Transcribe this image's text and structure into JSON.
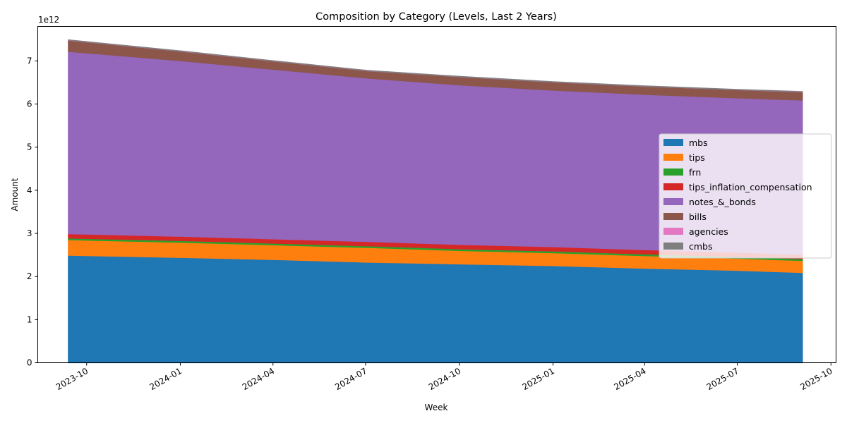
{
  "chart_data": {
    "type": "area",
    "stacked": true,
    "title": "Composition by Category (Levels, Last 2 Years)",
    "xlabel": "Week",
    "ylabel": "Amount",
    "y_offset_text": "1e12",
    "x_tick_labels": [
      "2023-10",
      "2024-01",
      "2024-04",
      "2024-07",
      "2024-10",
      "2025-01",
      "2025-04",
      "2025-07",
      "2025-10"
    ],
    "y_tick_labels": [
      "0",
      "1",
      "2",
      "3",
      "4",
      "5",
      "6",
      "7"
    ],
    "ylim": [
      0,
      7.8
    ],
    "xlim": [
      "2023-08-14",
      "2025-10-06"
    ],
    "legend_position": "center-right",
    "grid": false,
    "x": [
      "2023-09-13",
      "2024-01-03",
      "2024-04-03",
      "2024-07-03",
      "2024-10-02",
      "2025-01-01",
      "2025-04-02",
      "2025-07-02",
      "2025-09-03"
    ],
    "series": [
      {
        "name": "mbs",
        "color": "#1f77b4",
        "values": [
          2.49,
          2.44,
          2.39,
          2.33,
          2.29,
          2.25,
          2.19,
          2.14,
          2.09
        ]
      },
      {
        "name": "tips",
        "color": "#ff7f0e",
        "values": [
          0.36,
          0.35,
          0.34,
          0.34,
          0.31,
          0.3,
          0.29,
          0.28,
          0.28
        ]
      },
      {
        "name": "frn",
        "color": "#2ca02c",
        "values": [
          0.04,
          0.04,
          0.04,
          0.04,
          0.04,
          0.04,
          0.04,
          0.04,
          0.04
        ]
      },
      {
        "name": "tips_inflation_compensation",
        "color": "#d62728",
        "values": [
          0.1,
          0.1,
          0.1,
          0.1,
          0.1,
          0.1,
          0.1,
          0.1,
          0.1
        ]
      },
      {
        "name": "notes_&_bonds",
        "color": "#9467bd",
        "values": [
          4.23,
          4.07,
          3.93,
          3.79,
          3.7,
          3.63,
          3.6,
          3.58,
          3.58
        ]
      },
      {
        "name": "bills",
        "color": "#8c564b",
        "values": [
          0.26,
          0.22,
          0.19,
          0.17,
          0.19,
          0.19,
          0.19,
          0.19,
          0.19
        ]
      },
      {
        "name": "agencies",
        "color": "#e377c2",
        "values": [
          0.002,
          0.002,
          0.002,
          0.002,
          0.002,
          0.002,
          0.002,
          0.002,
          0.002
        ]
      },
      {
        "name": "cmbs",
        "color": "#7f7f7f",
        "values": [
          0.008,
          0.008,
          0.008,
          0.008,
          0.008,
          0.008,
          0.008,
          0.008,
          0.008
        ]
      }
    ]
  }
}
